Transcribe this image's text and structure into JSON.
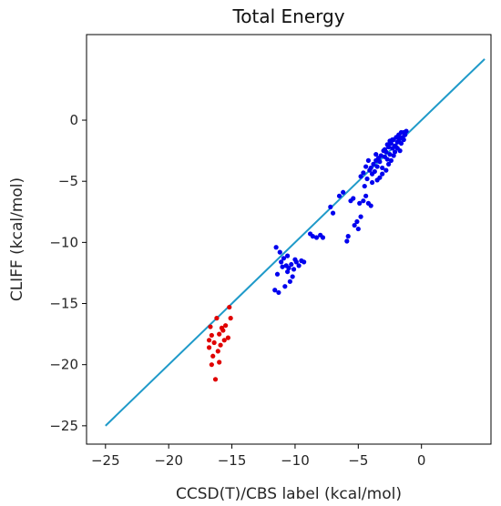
{
  "chart_data": {
    "type": "scatter",
    "title": "Total Energy",
    "xlabel": "CCSD(T)/CBS label (kcal/mol)",
    "ylabel": "CLIFF (kcal/mol)",
    "xlim": [
      -26.5,
      5.5
    ],
    "ylim": [
      -26.5,
      7.0
    ],
    "xticks": [
      -25,
      -20,
      -15,
      -10,
      -5,
      0
    ],
    "yticks": [
      -25,
      -20,
      -15,
      -10,
      -5,
      0
    ],
    "xtick_labels": [
      "−25",
      "−20",
      "−15",
      "−10",
      "−5",
      "0"
    ],
    "ytick_labels": [
      "−25",
      "−20",
      "−15",
      "−10",
      "−5",
      "0"
    ],
    "grid": false,
    "legend": "none",
    "reference_line": {
      "x": [
        -25,
        5
      ],
      "y": [
        -25,
        5
      ],
      "color": "#1f9ac9"
    },
    "series": [
      {
        "color": "#e00000",
        "points": [
          [
            -16.7,
            -16.9
          ],
          [
            -16.6,
            -17.6
          ],
          [
            -16.8,
            -18.6
          ],
          [
            -16.2,
            -16.2
          ],
          [
            -16.0,
            -17.5
          ],
          [
            -15.7,
            -17.2
          ],
          [
            -15.6,
            -18.0
          ],
          [
            -15.3,
            -17.8
          ],
          [
            -15.2,
            -15.3
          ],
          [
            -15.1,
            -16.2
          ],
          [
            -16.4,
            -18.2
          ],
          [
            -16.1,
            -18.9
          ],
          [
            -16.5,
            -19.3
          ],
          [
            -16.0,
            -19.8
          ],
          [
            -16.8,
            -18.0
          ],
          [
            -16.3,
            -21.2
          ],
          [
            -15.8,
            -17.0
          ],
          [
            -15.5,
            -16.8
          ],
          [
            -16.6,
            -20.0
          ],
          [
            -15.9,
            -18.4
          ]
        ]
      },
      {
        "color": "#0000ee",
        "points": [
          [
            -11.5,
            -10.4
          ],
          [
            -11.2,
            -10.8
          ],
          [
            -11.1,
            -11.6
          ],
          [
            -11.0,
            -12.0
          ],
          [
            -10.9,
            -11.3
          ],
          [
            -10.7,
            -11.9
          ],
          [
            -10.6,
            -12.4
          ],
          [
            -10.5,
            -12.1
          ],
          [
            -10.3,
            -11.8
          ],
          [
            -10.1,
            -12.2
          ],
          [
            -9.9,
            -11.6
          ],
          [
            -9.7,
            -11.9
          ],
          [
            -9.5,
            -11.5
          ],
          [
            -11.6,
            -13.9
          ],
          [
            -11.3,
            -14.1
          ],
          [
            -10.8,
            -13.6
          ],
          [
            -10.4,
            -13.2
          ],
          [
            -11.4,
            -12.6
          ],
          [
            -10.2,
            -12.8
          ],
          [
            -10.0,
            -11.4
          ],
          [
            -9.3,
            -11.6
          ],
          [
            -10.6,
            -11.1
          ],
          [
            -8.6,
            -9.5
          ],
          [
            -8.3,
            -9.6
          ],
          [
            -8.0,
            -9.4
          ],
          [
            -7.8,
            -9.6
          ],
          [
            -8.8,
            -9.3
          ],
          [
            -7.2,
            -7.1
          ],
          [
            -7.0,
            -7.6
          ],
          [
            -6.5,
            -6.2
          ],
          [
            -6.2,
            -5.9
          ],
          [
            -5.9,
            -9.9
          ],
          [
            -5.8,
            -9.5
          ],
          [
            -5.3,
            -8.6
          ],
          [
            -5.1,
            -8.3
          ],
          [
            -5.0,
            -8.9
          ],
          [
            -4.8,
            -7.9
          ],
          [
            -4.9,
            -6.8
          ],
          [
            -5.4,
            -6.4
          ],
          [
            -5.6,
            -6.6
          ],
          [
            -4.6,
            -6.6
          ],
          [
            -4.4,
            -6.2
          ],
          [
            -4.2,
            -6.8
          ],
          [
            -4.0,
            -7.0
          ],
          [
            -3.9,
            -5.1
          ],
          [
            -3.7,
            -4.2
          ],
          [
            -3.5,
            -3.8
          ],
          [
            -3.3,
            -3.4
          ],
          [
            -3.1,
            -3.9
          ],
          [
            -2.9,
            -3.0
          ],
          [
            -2.8,
            -2.6
          ],
          [
            -2.6,
            -2.2
          ],
          [
            -2.4,
            -1.9
          ],
          [
            -2.2,
            -1.6
          ],
          [
            -2.0,
            -1.4
          ],
          [
            -1.8,
            -1.2
          ],
          [
            -1.6,
            -1.0
          ],
          [
            -1.4,
            -1.0
          ],
          [
            -1.2,
            -0.9
          ],
          [
            -2.7,
            -2.0
          ],
          [
            -2.5,
            -1.7
          ],
          [
            -2.3,
            -2.3
          ],
          [
            -2.1,
            -2.1
          ],
          [
            -1.9,
            -1.8
          ],
          [
            -1.7,
            -1.5
          ],
          [
            -3.0,
            -2.5
          ],
          [
            -3.2,
            -2.9
          ],
          [
            -3.4,
            -3.1
          ],
          [
            -3.6,
            -3.3
          ],
          [
            -3.8,
            -3.6
          ],
          [
            -4.0,
            -3.9
          ],
          [
            -4.2,
            -3.3
          ],
          [
            -4.4,
            -3.8
          ],
          [
            -4.6,
            -4.3
          ],
          [
            -4.8,
            -4.6
          ],
          [
            -2.9,
            -2.4
          ],
          [
            -2.7,
            -3.2
          ],
          [
            -2.5,
            -2.8
          ],
          [
            -2.3,
            -1.6
          ],
          [
            -2.1,
            -2.6
          ],
          [
            -1.9,
            -2.3
          ],
          [
            -1.7,
            -2.5
          ],
          [
            -1.5,
            -1.4
          ],
          [
            -1.3,
            -1.2
          ],
          [
            -3.3,
            -4.7
          ],
          [
            -3.1,
            -4.4
          ],
          [
            -2.8,
            -4.1
          ],
          [
            -2.6,
            -3.6
          ],
          [
            -2.4,
            -3.3
          ],
          [
            -3.5,
            -4.9
          ],
          [
            -3.9,
            -4.4
          ],
          [
            -4.1,
            -4.1
          ],
          [
            -4.3,
            -4.8
          ],
          [
            -4.5,
            -5.4
          ],
          [
            -3.6,
            -2.8
          ],
          [
            -2.2,
            -2.9
          ],
          [
            -2.0,
            -2.2
          ],
          [
            -1.8,
            -1.7
          ],
          [
            -1.6,
            -1.9
          ],
          [
            -1.4,
            -1.6
          ]
        ]
      }
    ]
  }
}
